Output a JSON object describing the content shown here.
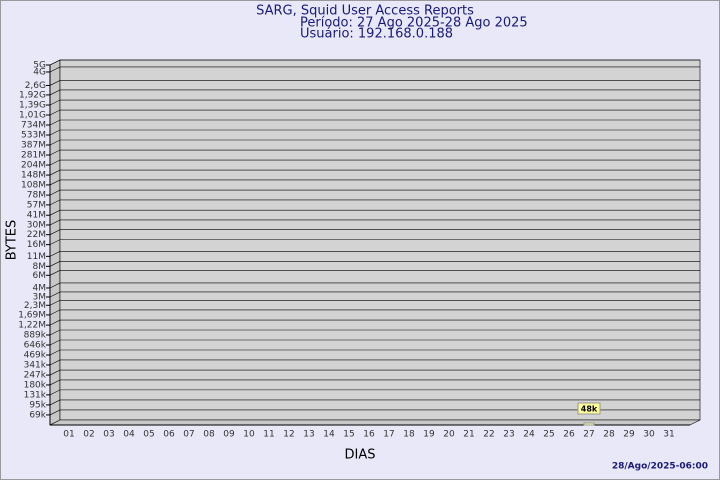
{
  "chart_data": {
    "type": "bar",
    "title": "SARG, Squid User Access Reports",
    "subtitle": [
      "Período: 27 Ago 2025-28 Ago 2025",
      "Usuário: 192.168.0.188"
    ],
    "ylabel": "BYTES",
    "xlabel": "DIAS",
    "footer": "28/Ago/2025-06:00",
    "categories": [
      "01",
      "02",
      "03",
      "04",
      "05",
      "06",
      "07",
      "08",
      "09",
      "10",
      "11",
      "12",
      "13",
      "14",
      "15",
      "16",
      "17",
      "18",
      "19",
      "20",
      "21",
      "22",
      "23",
      "24",
      "25",
      "26",
      "27",
      "28",
      "29",
      "30",
      "31"
    ],
    "values": [
      null,
      null,
      null,
      null,
      null,
      null,
      null,
      null,
      null,
      null,
      null,
      null,
      null,
      null,
      null,
      null,
      null,
      null,
      null,
      null,
      null,
      null,
      null,
      null,
      null,
      null,
      48000,
      null,
      null,
      null,
      null
    ],
    "value_labels": [
      null,
      null,
      null,
      null,
      null,
      null,
      null,
      null,
      null,
      null,
      null,
      null,
      null,
      null,
      null,
      null,
      null,
      null,
      null,
      null,
      null,
      null,
      null,
      null,
      null,
      null,
      "48k",
      null,
      null,
      null,
      null
    ],
    "color": "#ffff99",
    "log": true,
    "ylim": [
      50000,
      5000000000
    ],
    "yticks": [
      {
        "value": 69000,
        "label": "69k"
      },
      {
        "value": 95000,
        "label": "95k"
      },
      {
        "value": 131000,
        "label": "131k"
      },
      {
        "value": 180000,
        "label": "180k"
      },
      {
        "value": 247000,
        "label": "247k"
      },
      {
        "value": 341000,
        "label": "341k"
      },
      {
        "value": 469000,
        "label": "469k"
      },
      {
        "value": 646000,
        "label": "646k"
      },
      {
        "value": 889000,
        "label": "889k"
      },
      {
        "value": 1220000,
        "label": "1,22M"
      },
      {
        "value": 1690000,
        "label": "1,69M"
      },
      {
        "value": 2300000,
        "label": "2,3M"
      },
      {
        "value": 3000000,
        "label": "3M"
      },
      {
        "value": 4000000,
        "label": "4M"
      },
      {
        "value": 6000000,
        "label": "6M"
      },
      {
        "value": 8000000,
        "label": "8M"
      },
      {
        "value": 11000000,
        "label": "11M"
      },
      {
        "value": 16000000,
        "label": "16M"
      },
      {
        "value": 22000000,
        "label": "22M"
      },
      {
        "value": 30000000,
        "label": "30M"
      },
      {
        "value": 41000000,
        "label": "41M"
      },
      {
        "value": 57000000,
        "label": "57M"
      },
      {
        "value": 78000000,
        "label": "78M"
      },
      {
        "value": 108000000,
        "label": "108M"
      },
      {
        "value": 148000000,
        "label": "148M"
      },
      {
        "value": 204000000,
        "label": "204M"
      },
      {
        "value": 281000000,
        "label": "281M"
      },
      {
        "value": 387000000,
        "label": "387M"
      },
      {
        "value": 533000000,
        "label": "533M"
      },
      {
        "value": 734000000,
        "label": "734M"
      },
      {
        "value": 1010000000,
        "label": "1,01G"
      },
      {
        "value": 1390000000,
        "label": "1,39G"
      },
      {
        "value": 1920000000,
        "label": "1,92G"
      },
      {
        "value": 2600000000,
        "label": "2,6G"
      },
      {
        "value": 4000000000,
        "label": "4G"
      },
      {
        "value": 5000000000,
        "label": "5G"
      }
    ],
    "grid": true
  }
}
